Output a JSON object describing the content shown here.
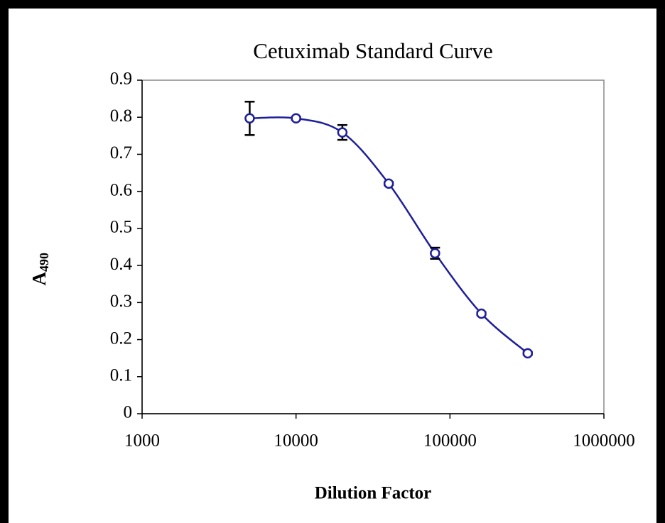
{
  "chart_data": {
    "type": "scatter",
    "title": "Cetuximab Standard Curve",
    "xlabel": "Dilution Factor",
    "ylabel": "A",
    "ylabel_subscript": "490",
    "x": [
      5000,
      10000,
      20000,
      40000,
      80000,
      160000,
      320000
    ],
    "series": [
      {
        "name": "Cetuximab",
        "color": "#1f1f99",
        "values": [
          0.797,
          0.797,
          0.759,
          0.621,
          0.433,
          0.27,
          0.163
        ],
        "errors": [
          0.045,
          0.004,
          0.02,
          0.004,
          0.015,
          0.004,
          0.004
        ]
      }
    ],
    "xscale": "log",
    "xlim": [
      1000,
      1000000
    ],
    "xticks": [
      1000,
      10000,
      100000,
      1000000
    ],
    "ylim": [
      0,
      0.9
    ],
    "yticks": [
      0,
      0.1,
      0.2,
      0.3,
      0.4,
      0.5,
      0.6,
      0.7,
      0.8,
      0.9
    ],
    "grid": false
  }
}
